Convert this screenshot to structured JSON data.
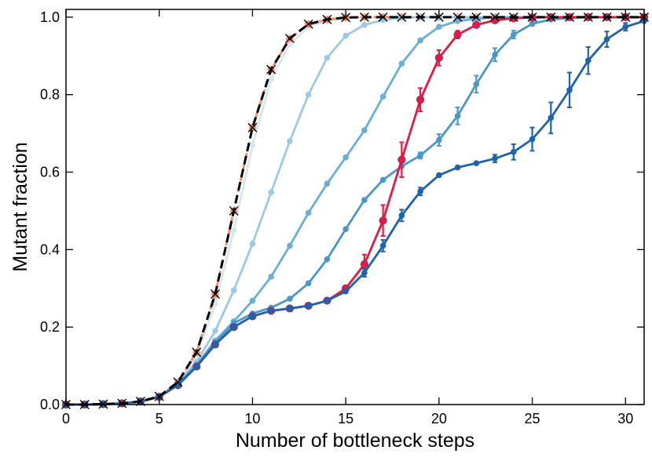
{
  "chart_data": {
    "type": "line",
    "title": "",
    "xlabel": "Number of bottleneck steps",
    "ylabel": "Mutant fraction",
    "xlim": [
      0,
      31
    ],
    "ylim": [
      0,
      1.02
    ],
    "x_ticks": [
      "0",
      "5",
      "10",
      "15",
      "20",
      "25",
      "30"
    ],
    "y_ticks": [
      "0.0",
      "0.2",
      "0.4",
      "0.6",
      "0.8",
      "1.0"
    ],
    "grid": false,
    "legend": false,
    "x": [
      0,
      1,
      2,
      3,
      4,
      5,
      6,
      7,
      8,
      9,
      10,
      11,
      12,
      13,
      14,
      15,
      16,
      17,
      18,
      19,
      20,
      21,
      22,
      23,
      24,
      25,
      26,
      27,
      28,
      29,
      30,
      31
    ],
    "series": [
      {
        "color": "#d8e6f4",
        "marker": "circle",
        "values": [
          0,
          0,
          0.001,
          0.003,
          0.008,
          0.02,
          0.055,
          0.125,
          0.26,
          0.45,
          0.67,
          0.84,
          0.93,
          0.975,
          0.99,
          0.997,
          0.999,
          1,
          1,
          1,
          1,
          1,
          1,
          1,
          1,
          1,
          1,
          1,
          1,
          1,
          1,
          1
        ]
      },
      {
        "color": "#f28c5a",
        "marker": "circle",
        "dashed": true,
        "values": [
          0,
          0,
          0.001,
          0.003,
          0.008,
          0.021,
          0.058,
          0.135,
          0.285,
          0.5,
          0.715,
          0.865,
          0.945,
          0.982,
          0.994,
          0.999,
          1,
          1,
          1,
          1,
          1,
          1,
          1,
          1,
          1,
          1,
          1,
          1,
          1,
          1,
          1,
          1
        ]
      },
      {
        "color": "#9ec9e6",
        "marker": "circle",
        "values": [
          0,
          0,
          0.001,
          0.003,
          0.008,
          0.021,
          0.056,
          0.11,
          0.19,
          0.295,
          0.415,
          0.548,
          0.68,
          0.8,
          0.895,
          0.952,
          0.98,
          0.993,
          0.998,
          1,
          1,
          1,
          1,
          1,
          1,
          1,
          1,
          1,
          1,
          1,
          1,
          1
        ]
      },
      {
        "color": "#6aaed6",
        "marker": "circle",
        "values": [
          0,
          0,
          0.001,
          0.003,
          0.008,
          0.02,
          0.053,
          0.103,
          0.165,
          0.215,
          0.268,
          0.33,
          0.41,
          0.495,
          0.57,
          0.638,
          0.708,
          0.795,
          0.88,
          0.94,
          0.975,
          0.99,
          0.996,
          0.999,
          1,
          1,
          1,
          1,
          1,
          1,
          1,
          1
        ]
      },
      {
        "color": "#4a98c9",
        "marker": "circle",
        "values": [
          0,
          0,
          0.001,
          0.003,
          0.008,
          0.02,
          0.052,
          0.1,
          0.16,
          0.21,
          0.235,
          0.25,
          0.273,
          0.313,
          0.375,
          0.453,
          0.528,
          0.58,
          0.615,
          0.643,
          0.683,
          0.745,
          0.827,
          0.903,
          0.955,
          0.983,
          0.994,
          0.998,
          1,
          1,
          1,
          1
        ],
        "error": [
          0,
          0,
          0,
          0,
          0,
          0,
          0,
          0,
          0,
          0,
          0,
          0,
          0,
          0,
          0,
          0,
          0,
          0,
          0,
          0.008,
          0.015,
          0.022,
          0.022,
          0.017,
          0.01,
          0.005,
          0,
          0,
          0,
          0,
          0,
          0
        ]
      },
      {
        "color": "#e31a43",
        "marker": "circle",
        "values": [
          0,
          0,
          0.001,
          0.003,
          0.008,
          0.02,
          0.05,
          0.098,
          0.155,
          0.2,
          0.228,
          0.242,
          0.248,
          0.255,
          0.268,
          0.3,
          0.362,
          0.475,
          0.632,
          0.787,
          0.895,
          0.955,
          0.98,
          0.992,
          0.997,
          0.999,
          1,
          1,
          1,
          1,
          1,
          1
        ],
        "error": [
          0,
          0,
          0,
          0,
          0,
          0,
          0,
          0,
          0,
          0,
          0,
          0,
          0,
          0,
          0,
          0,
          0.025,
          0.04,
          0.045,
          0.03,
          0.02,
          0.01,
          0,
          0,
          0,
          0,
          0,
          0,
          0,
          0,
          0,
          0
        ]
      },
      {
        "color": "#1f63aa",
        "marker": "circle",
        "values": [
          0,
          0,
          0.001,
          0.003,
          0.008,
          0.02,
          0.05,
          0.098,
          0.155,
          0.2,
          0.228,
          0.242,
          0.248,
          0.255,
          0.268,
          0.292,
          0.34,
          0.41,
          0.488,
          0.55,
          0.592,
          0.612,
          0.623,
          0.635,
          0.652,
          0.685,
          0.74,
          0.812,
          0.888,
          0.943,
          0.975,
          0.99
        ],
        "error": [
          0,
          0,
          0,
          0,
          0,
          0,
          0,
          0,
          0,
          0,
          0,
          0,
          0,
          0,
          0,
          0,
          0.01,
          0.015,
          0.015,
          0.01,
          0,
          0,
          0,
          0.01,
          0.02,
          0.03,
          0.04,
          0.045,
          0.035,
          0.02,
          0.01,
          0
        ]
      },
      {
        "color": "#000000",
        "marker": "x",
        "dashed": true,
        "values": [
          0,
          0,
          0.001,
          0.003,
          0.008,
          0.021,
          0.058,
          0.135,
          0.285,
          0.5,
          0.715,
          0.865,
          0.945,
          0.982,
          0.994,
          0.999,
          1,
          1,
          1,
          1,
          1,
          1,
          1,
          1,
          1,
          1,
          1,
          1,
          1,
          1,
          1,
          1
        ]
      }
    ]
  }
}
